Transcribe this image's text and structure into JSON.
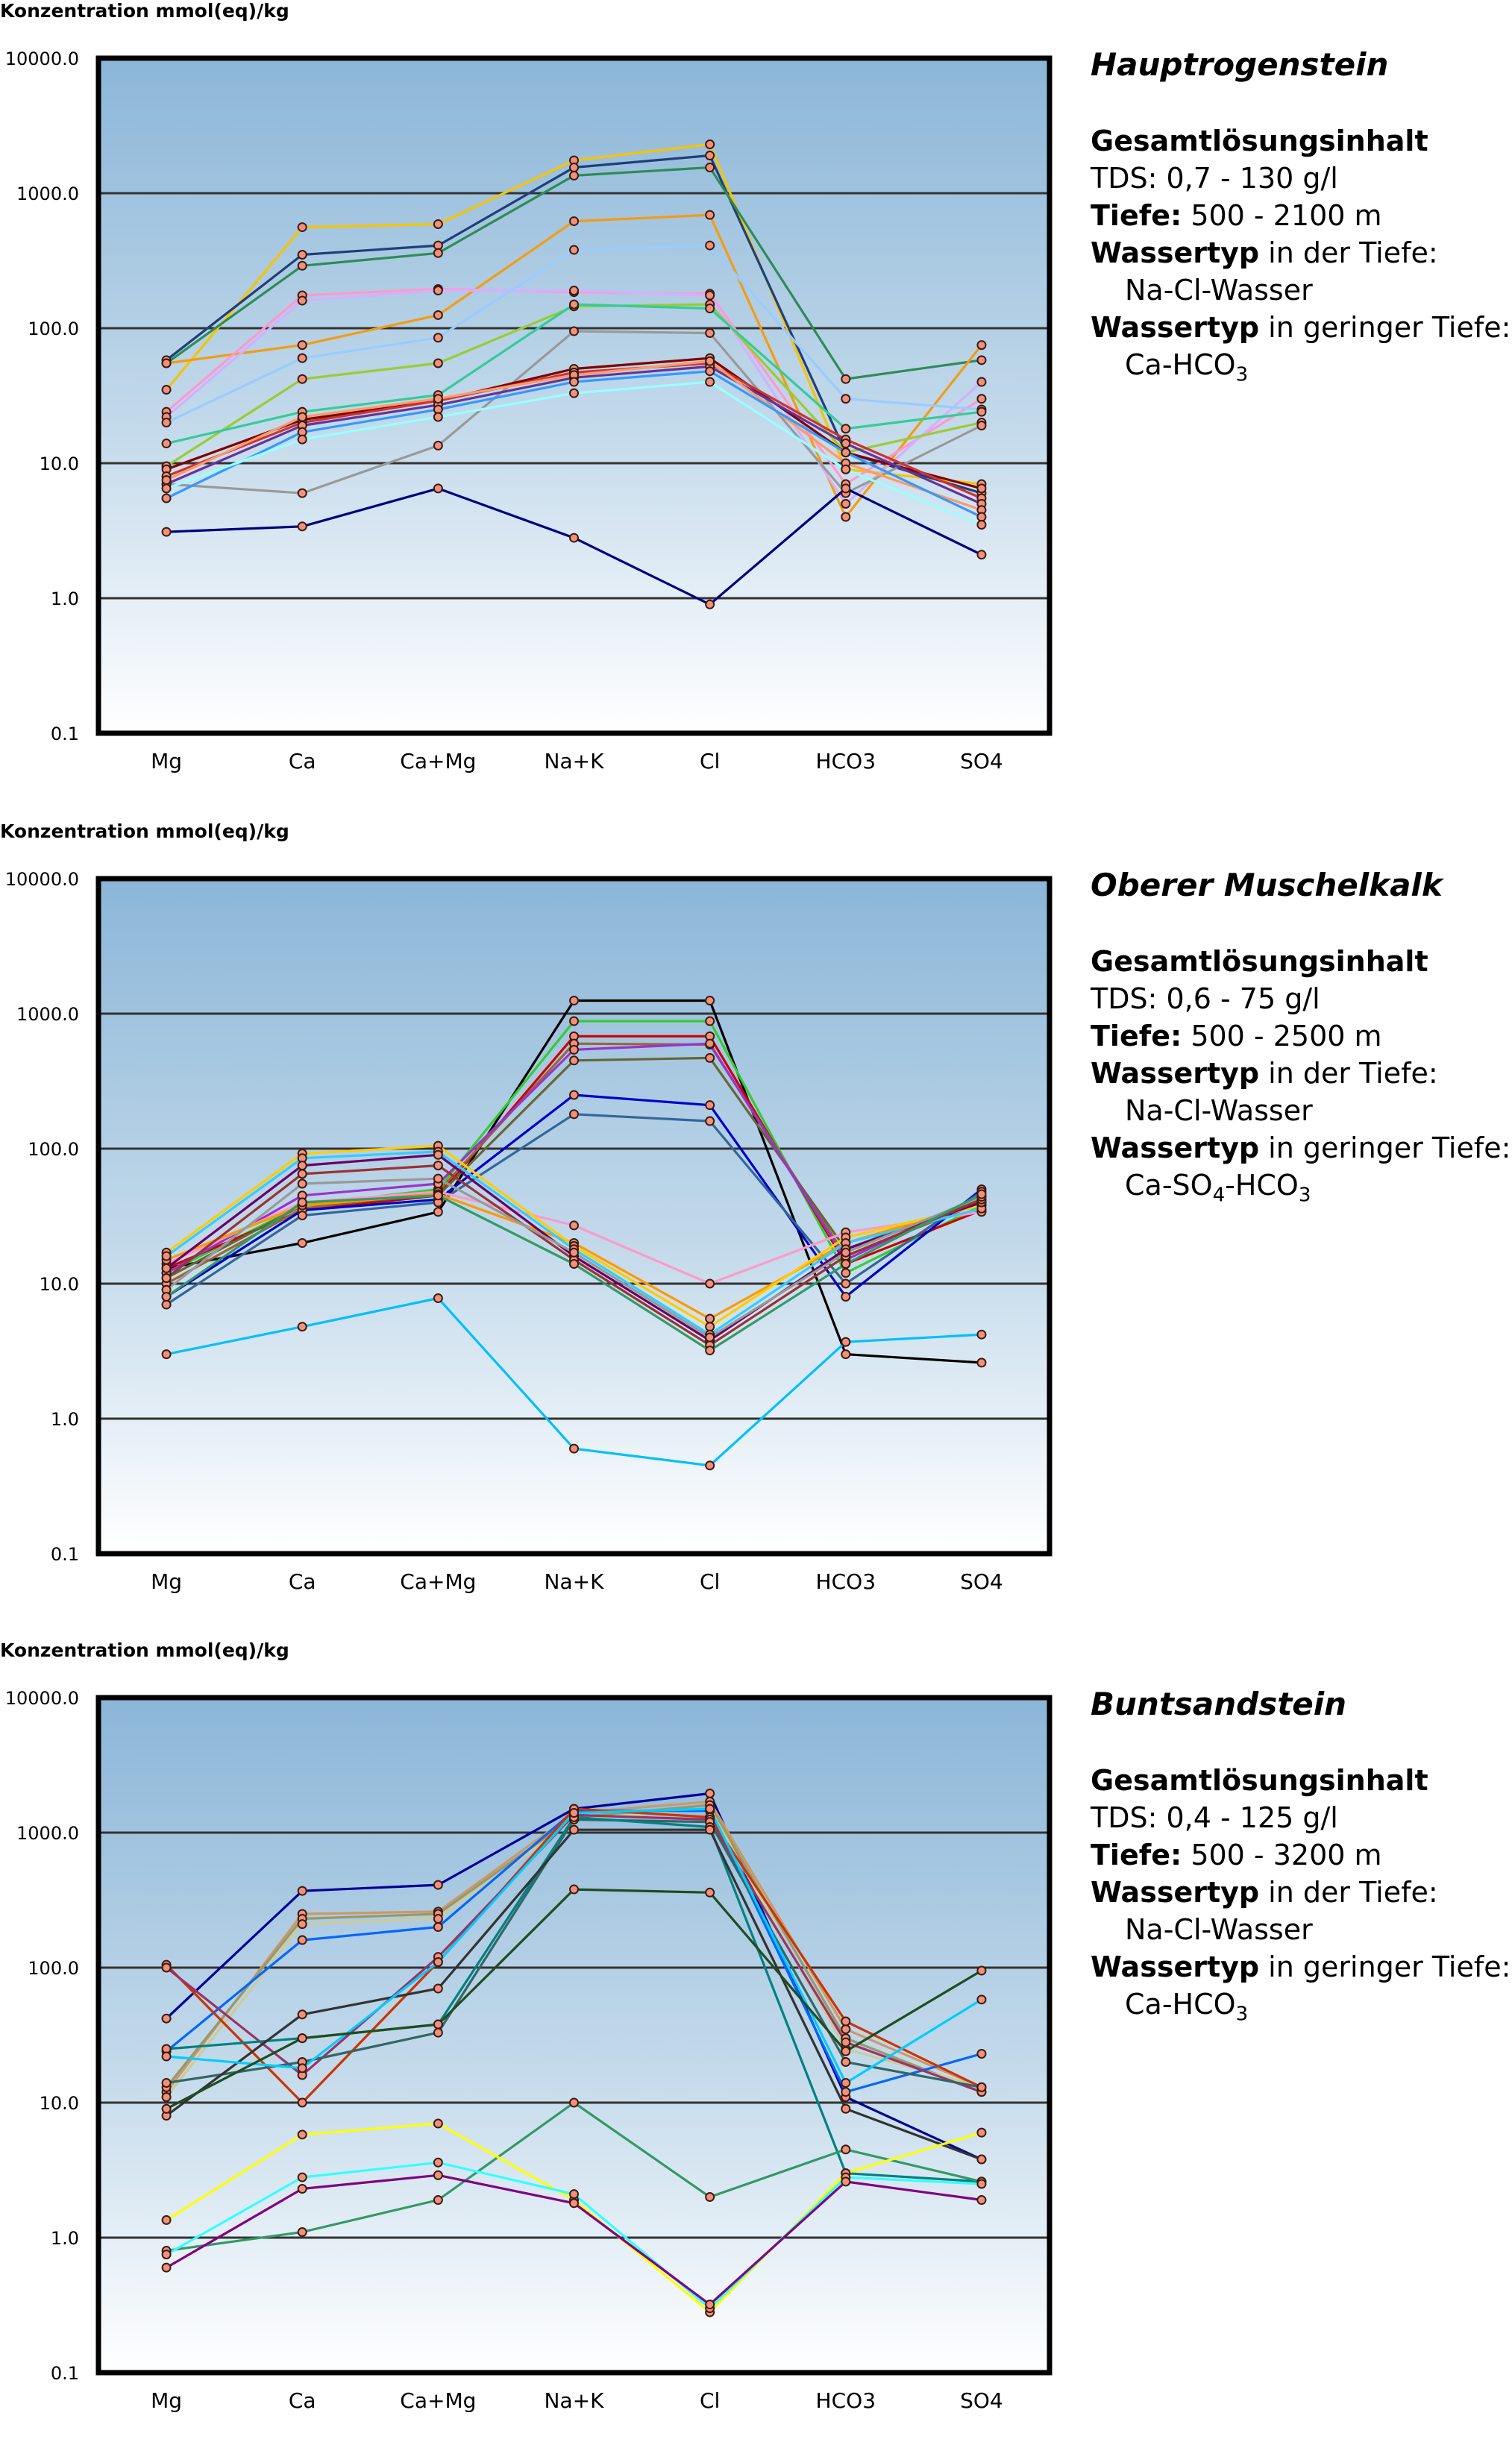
{
  "y_axis_label": "Konzentration mmol(eq)/kg",
  "info_labels": {
    "tds_heading": "Gesamtlösungsinhalt",
    "depth_label": "Tiefe:",
    "deep_type_label": "Wassertyp",
    "deep_type_suffix": " in der Tiefe:",
    "shallow_type_label": "Wassertyp",
    "shallow_type_suffix": " in geringer Tiefe:"
  },
  "panels": [
    {
      "title": "Hauptrogenstein",
      "tds": "TDS: 0,7 - 130 g/l",
      "depth": " 500 - 2100 m",
      "deep_type": "Na-Cl-Wasser",
      "shallow_type_html": "Ca-HCO<sub>3</sub>"
    },
    {
      "title": "Oberer Muschelkalk",
      "tds": "TDS: 0,6 - 75 g/l",
      "depth": " 500 - 2500 m",
      "deep_type": "Na-Cl-Wasser",
      "shallow_type_html": "Ca-SO<sub>4</sub>-HCO<sub>3</sub>"
    },
    {
      "title": "Buntsandstein",
      "tds": "TDS: 0,4 - 125 g/l",
      "depth": " 500 - 3200 m",
      "deep_type": "Na-Cl-Wasser",
      "shallow_type_html": "Ca-HCO<sub>3</sub>"
    }
  ],
  "chart_data": [
    {
      "type": "line",
      "title": "Hauptrogenstein",
      "ylabel": "Konzentration mmol(eq)/kg",
      "yscale": "log",
      "ylim": [
        0.1,
        10000
      ],
      "yticks": [
        "10000.0",
        "1000.0",
        "100.0",
        "10.0",
        "1.0",
        "0.1"
      ],
      "categories": [
        "Mg",
        "Ca",
        "Ca+Mg",
        "Na+K",
        "Cl",
        "HCO3",
        "SO4"
      ],
      "series": [
        {
          "color": "#f5c400",
          "values": [
            35,
            560,
            590,
            1750,
            2300,
            9,
            7
          ]
        },
        {
          "color": "#1f3f7a",
          "values": [
            58,
            350,
            410,
            1550,
            1900,
            12,
            6
          ]
        },
        {
          "color": "#2e8b57",
          "values": [
            55,
            290,
            360,
            1350,
            1550,
            42,
            58
          ]
        },
        {
          "color": "#f39c12",
          "values": [
            55,
            75,
            125,
            620,
            690,
            4,
            75
          ]
        },
        {
          "color": "#ff99cc",
          "values": [
            24,
            175,
            195,
            185,
            180,
            7,
            30
          ]
        },
        {
          "color": "#d4b0ff",
          "values": [
            22,
            160,
            190,
            190,
            175,
            5,
            40
          ]
        },
        {
          "color": "#99ccff",
          "values": [
            20,
            60,
            85,
            380,
            410,
            30,
            25
          ]
        },
        {
          "color": "#99cc33",
          "values": [
            9.5,
            42,
            55,
            145,
            150,
            12,
            20
          ]
        },
        {
          "color": "#33cc99",
          "values": [
            14,
            24,
            32,
            150,
            140,
            18,
            24
          ]
        },
        {
          "color": "#999999",
          "values": [
            7,
            6,
            13.5,
            95,
            92,
            6,
            19
          ]
        },
        {
          "color": "#800000",
          "values": [
            9,
            21,
            29,
            50,
            60,
            12,
            6.5
          ]
        },
        {
          "color": "#cc3333",
          "values": [
            8,
            20,
            29,
            47,
            55,
            15,
            5.5
          ]
        },
        {
          "color": "#663399",
          "values": [
            7,
            19,
            27,
            43,
            52,
            14,
            5
          ]
        },
        {
          "color": "#ff9966",
          "values": [
            7.5,
            22,
            30,
            45,
            57,
            10,
            4.5
          ]
        },
        {
          "color": "#3399ff",
          "values": [
            5.5,
            17,
            25,
            40,
            48,
            12,
            4
          ]
        },
        {
          "color": "#99ffff",
          "values": [
            6.5,
            15,
            22,
            33,
            40,
            9,
            3.5
          ]
        },
        {
          "color": "#000080",
          "values": [
            3.1,
            3.4,
            6.5,
            2.8,
            0.9,
            6.5,
            2.1
          ]
        }
      ]
    },
    {
      "type": "line",
      "title": "Oberer Muschelkalk",
      "ylabel": "Konzentration mmol(eq)/kg",
      "yscale": "log",
      "ylim": [
        0.1,
        10000
      ],
      "yticks": [
        "10000.0",
        "1000.0",
        "100.0",
        "10.0",
        "1.0",
        "0.1"
      ],
      "categories": [
        "Mg",
        "Ca",
        "Ca+Mg",
        "Na+K",
        "Cl",
        "HCO3",
        "SO4"
      ],
      "series": [
        {
          "color": "#000000",
          "values": [
            13,
            20,
            34,
            1250,
            1250,
            3,
            2.6
          ]
        },
        {
          "color": "#33cc33",
          "values": [
            12,
            38,
            50,
            880,
            880,
            12,
            38
          ]
        },
        {
          "color": "#cc0000",
          "values": [
            13,
            35,
            45,
            680,
            680,
            14,
            35
          ]
        },
        {
          "color": "#996633",
          "values": [
            10,
            36,
            48,
            600,
            590,
            16,
            40
          ]
        },
        {
          "color": "#666633",
          "values": [
            11,
            38,
            45,
            450,
            470,
            18,
            42
          ]
        },
        {
          "color": "#9933cc",
          "values": [
            12,
            45,
            55,
            540,
            600,
            15,
            45
          ]
        },
        {
          "color": "#0000cc",
          "values": [
            8,
            35,
            42,
            250,
            210,
            8,
            50
          ]
        },
        {
          "color": "#336699",
          "values": [
            7,
            32,
            40,
            180,
            160,
            10,
            48
          ]
        },
        {
          "color": "#ff99cc",
          "values": [
            14,
            40,
            48,
            27,
            10,
            24,
            34
          ]
        },
        {
          "color": "#ff9900",
          "values": [
            15,
            38,
            46,
            20,
            5.5,
            20,
            40
          ]
        },
        {
          "color": "#ffcc00",
          "values": [
            17,
            92,
            105,
            19,
            4.8,
            22,
            38
          ]
        },
        {
          "color": "#33ccff",
          "values": [
            16,
            85,
            95,
            18,
            4.2,
            20,
            36
          ]
        },
        {
          "color": "#660066",
          "values": [
            13,
            75,
            90,
            16,
            3.8,
            18,
            40
          ]
        },
        {
          "color": "#993333",
          "values": [
            11,
            65,
            75,
            15,
            3.5,
            16,
            42
          ]
        },
        {
          "color": "#999999",
          "values": [
            9,
            55,
            60,
            17,
            4,
            17,
            44
          ]
        },
        {
          "color": "#339966",
          "values": [
            8,
            40,
            45,
            14,
            3.2,
            14,
            46
          ]
        },
        {
          "color": "#00bfff",
          "values": [
            3,
            4.8,
            7.8,
            0.6,
            0.45,
            3.7,
            4.2
          ]
        }
      ]
    },
    {
      "type": "line",
      "title": "Buntsandstein",
      "ylabel": "Konzentration mmol(eq)/kg",
      "yscale": "log",
      "ylim": [
        0.1,
        10000
      ],
      "yticks": [
        "10000.0",
        "1000.0",
        "100.0",
        "10.0",
        "1.0",
        "0.1"
      ],
      "categories": [
        "Mg",
        "Ca",
        "Ca+Mg",
        "Na+K",
        "Cl",
        "HCO3",
        "SO4"
      ],
      "series": [
        {
          "color": "#000099",
          "values": [
            42,
            370,
            410,
            1500,
            1950,
            11,
            3.8
          ]
        },
        {
          "color": "#cc9966",
          "values": [
            12,
            250,
            260,
            1400,
            1700,
            35,
            13
          ]
        },
        {
          "color": "#999966",
          "values": [
            13,
            230,
            250,
            1300,
            1600,
            30,
            12
          ]
        },
        {
          "color": "#cccc99",
          "values": [
            11,
            210,
            230,
            1250,
            1500,
            25,
            13
          ]
        },
        {
          "color": "#0066ff",
          "values": [
            24,
            160,
            200,
            1450,
            1450,
            12,
            23
          ]
        },
        {
          "color": "#cc3300",
          "values": [
            105,
            10,
            110,
            1500,
            1300,
            40,
            13
          ]
        },
        {
          "color": "#993366",
          "values": [
            100,
            16,
            120,
            1350,
            1250,
            28,
            12
          ]
        },
        {
          "color": "#336666",
          "values": [
            14,
            20,
            33,
            1250,
            1200,
            20,
            13
          ]
        },
        {
          "color": "#008080",
          "values": [
            25,
            30,
            38,
            1300,
            1100,
            3,
            2.6
          ]
        },
        {
          "color": "#333333",
          "values": [
            8,
            45,
            70,
            1050,
            1050,
            9,
            3.8
          ]
        },
        {
          "color": "#00ccff",
          "values": [
            22,
            18,
            110,
            1400,
            1500,
            14,
            58
          ]
        },
        {
          "color": "#1f4d1f",
          "values": [
            9,
            30,
            38,
            380,
            360,
            24,
            95
          ]
        },
        {
          "color": "#339966",
          "values": [
            0.8,
            1.1,
            1.9,
            10,
            2,
            4.5,
            2.6
          ]
        },
        {
          "color": "#ffff00",
          "values": [
            1.35,
            5.8,
            7,
            1.9,
            0.28,
            3,
            6
          ]
        },
        {
          "color": "#33ffff",
          "values": [
            0.75,
            2.8,
            3.6,
            2.1,
            0.3,
            2.8,
            2.5
          ]
        },
        {
          "color": "#800080",
          "values": [
            0.6,
            2.3,
            2.9,
            1.8,
            0.32,
            2.6,
            1.9
          ]
        }
      ]
    }
  ]
}
